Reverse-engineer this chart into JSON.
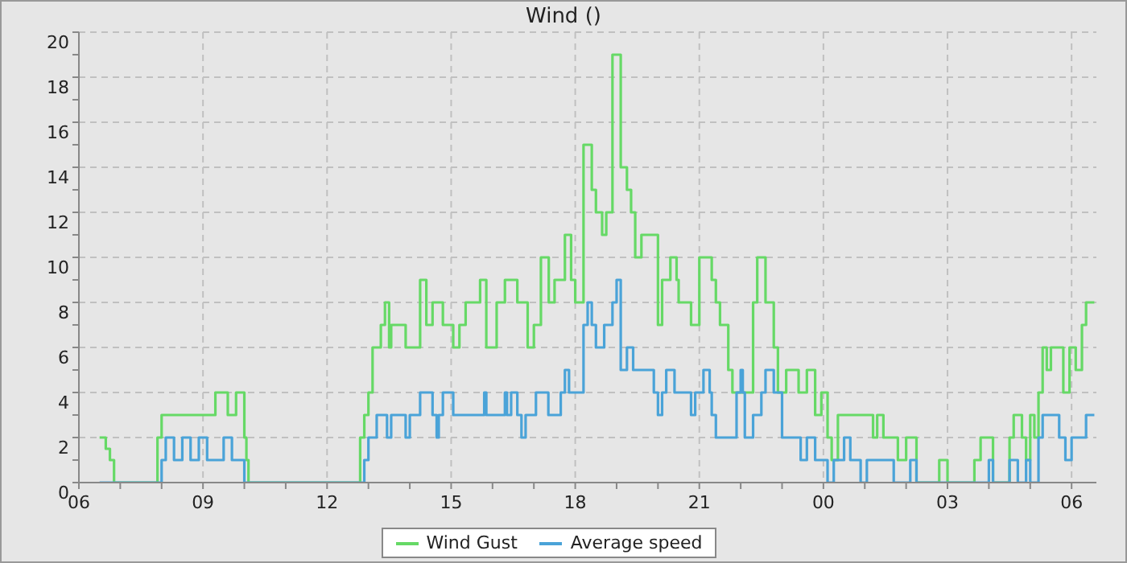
{
  "chart_data": {
    "type": "step",
    "title": "Wind ()",
    "xlim": [
      6,
      30.6
    ],
    "ylim": [
      0,
      20
    ],
    "xticks": [
      {
        "value": 6,
        "label": "06"
      },
      {
        "value": 7,
        "label": null
      },
      {
        "value": 8,
        "label": null
      },
      {
        "value": 9,
        "label": "09"
      },
      {
        "value": 10,
        "label": null
      },
      {
        "value": 11,
        "label": null
      },
      {
        "value": 12,
        "label": "12"
      },
      {
        "value": 13,
        "label": null
      },
      {
        "value": 14,
        "label": null
      },
      {
        "value": 15,
        "label": "15"
      },
      {
        "value": 16,
        "label": null
      },
      {
        "value": 17,
        "label": null
      },
      {
        "value": 18,
        "label": "18"
      },
      {
        "value": 19,
        "label": null
      },
      {
        "value": 20,
        "label": null
      },
      {
        "value": 21,
        "label": "21"
      },
      {
        "value": 22,
        "label": null
      },
      {
        "value": 23,
        "label": null
      },
      {
        "value": 24,
        "label": "00"
      },
      {
        "value": 25,
        "label": null
      },
      {
        "value": 26,
        "label": null
      },
      {
        "value": 27,
        "label": "03"
      },
      {
        "value": 28,
        "label": null
      },
      {
        "value": 29,
        "label": null
      },
      {
        "value": 30,
        "label": "06"
      }
    ],
    "yticks": [
      0,
      {
        "value": 1,
        "label": null
      },
      2,
      {
        "value": 3,
        "label": null
      },
      4,
      {
        "value": 5,
        "label": null
      },
      6,
      {
        "value": 7,
        "label": null
      },
      8,
      {
        "value": 9,
        "label": null
      },
      10,
      {
        "value": 11,
        "label": null
      },
      12,
      {
        "value": 13,
        "label": null
      },
      14,
      {
        "value": 15,
        "label": null
      },
      16,
      {
        "value": 17,
        "label": null
      },
      18,
      {
        "value": 19,
        "label": null
      },
      20
    ],
    "grid": true,
    "legend": "bottom",
    "marker": "none",
    "line_style": "solid",
    "series": [
      {
        "name": "Wind Gust",
        "color": "#66d966",
        "x": [
          6.5,
          6.65,
          6.75,
          6.85,
          7.9,
          8.0,
          9.3,
          9.6,
          9.8,
          10.0,
          10.05,
          10.1,
          12.8,
          12.9,
          13.0,
          13.1,
          13.3,
          13.4,
          13.5,
          13.55,
          13.9,
          14.25,
          14.4,
          14.55,
          14.8,
          15.05,
          15.2,
          15.35,
          15.7,
          15.85,
          16.1,
          16.3,
          16.6,
          16.85,
          17.0,
          17.17,
          17.36,
          17.5,
          17.75,
          17.9,
          18.0,
          18.2,
          18.4,
          18.5,
          18.65,
          18.75,
          18.9,
          19.1,
          19.25,
          19.35,
          19.45,
          19.6,
          20.0,
          20.1,
          20.3,
          20.45,
          20.5,
          20.8,
          21.0,
          21.3,
          21.4,
          21.5,
          21.7,
          21.8,
          22.2,
          22.3,
          22.4,
          22.6,
          22.8,
          22.9,
          23.1,
          23.4,
          23.6,
          23.8,
          23.95,
          24.1,
          24.2,
          24.35,
          25.2,
          25.3,
          25.45,
          25.8,
          26.0,
          26.25,
          26.8,
          27.0,
          27.65,
          27.8,
          28.1,
          28.5,
          28.6,
          28.8,
          28.9,
          29.0,
          29.1,
          29.2,
          29.3,
          29.4,
          29.5,
          29.8,
          29.95,
          30.1,
          30.25,
          30.35,
          30.55
        ],
        "values": [
          2,
          1.5,
          1,
          0,
          2,
          3,
          4,
          3,
          4,
          2,
          1,
          0,
          2,
          3,
          4,
          6,
          7,
          8,
          6,
          7,
          6,
          9,
          7,
          8,
          7,
          6,
          7,
          8,
          9,
          6,
          8,
          9,
          8,
          6,
          7,
          10,
          8,
          9,
          11,
          9,
          8,
          15,
          13,
          12,
          11,
          12,
          19,
          14,
          13,
          12,
          10,
          11,
          7,
          9,
          10,
          9,
          8,
          7,
          10,
          9,
          8,
          7,
          5,
          4,
          4,
          8,
          10,
          8,
          6,
          4,
          5,
          4,
          5,
          3,
          4,
          2,
          1,
          3,
          2,
          3,
          2,
          1,
          2,
          0,
          1,
          0,
          1,
          2,
          0,
          2,
          3,
          2,
          1,
          3,
          2,
          4,
          6,
          5,
          6,
          4,
          6,
          5,
          7,
          8,
          8
        ]
      },
      {
        "name": "Average speed",
        "color": "#4aa3d8",
        "x": [
          6.5,
          8.0,
          8.1,
          8.3,
          8.5,
          8.7,
          8.9,
          9.1,
          9.5,
          9.7,
          10.0,
          12.9,
          13.0,
          13.2,
          13.45,
          13.55,
          13.9,
          14.0,
          14.25,
          14.55,
          14.65,
          14.7,
          14.8,
          15.05,
          15.8,
          15.85,
          16.3,
          16.35,
          16.45,
          16.6,
          16.7,
          16.8,
          17.05,
          17.35,
          17.65,
          17.75,
          17.85,
          18.0,
          18.2,
          18.3,
          18.4,
          18.5,
          18.7,
          18.9,
          19.0,
          19.1,
          19.25,
          19.4,
          19.9,
          20.0,
          20.1,
          20.2,
          20.4,
          20.8,
          20.9,
          21.1,
          21.25,
          21.3,
          21.4,
          21.9,
          22.0,
          22.05,
          22.1,
          22.3,
          22.5,
          22.6,
          22.8,
          23.0,
          23.45,
          23.6,
          23.8,
          24.1,
          24.25,
          24.5,
          24.65,
          24.9,
          25.05,
          25.7,
          26.1,
          26.25,
          28.0,
          28.1,
          28.5,
          28.7,
          28.9,
          29.0,
          29.2,
          29.3,
          29.4,
          29.7,
          29.85,
          30.0,
          30.35,
          30.55
        ],
        "values": [
          0,
          1,
          2,
          1,
          2,
          1,
          2,
          1,
          2,
          1,
          0,
          1,
          2,
          3,
          2,
          3,
          2,
          3,
          4,
          3,
          2,
          3,
          4,
          3,
          4,
          3,
          4,
          3,
          4,
          3,
          2,
          3,
          4,
          3,
          4,
          5,
          4,
          4,
          7,
          8,
          7,
          6,
          7,
          8,
          9,
          5,
          6,
          5,
          4,
          3,
          4,
          5,
          4,
          3,
          4,
          5,
          4,
          3,
          2,
          4,
          5,
          4,
          2,
          3,
          4,
          5,
          4,
          2,
          1,
          2,
          1,
          0,
          1,
          2,
          1,
          0,
          1,
          0,
          1,
          0,
          1,
          0,
          1,
          0,
          1,
          0,
          2,
          3,
          3,
          2,
          1,
          2,
          3,
          3
        ]
      }
    ]
  }
}
